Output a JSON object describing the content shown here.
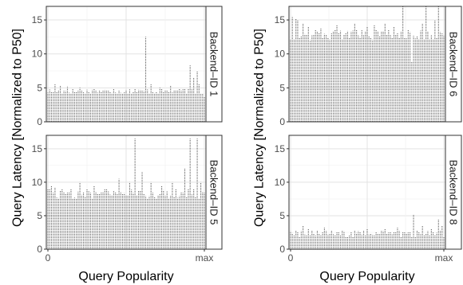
{
  "chart_data": [
    {
      "type": "bar",
      "facet": "Backend-ID 1",
      "ylabel": "Query Latency [Normalized to P50]",
      "xlabel": "Query Popularity",
      "yticks": [
        0,
        5,
        10,
        15
      ],
      "xticks": [
        "0",
        "max"
      ],
      "ylim": [
        0,
        17
      ],
      "grid": true,
      "series": [
        {
          "base": 4.5,
          "noise": 0.4,
          "spikes": [
            [
              0.05,
              5.5
            ],
            [
              0.08,
              5.3
            ],
            [
              0.13,
              5.2
            ],
            [
              0.2,
              5.0
            ],
            [
              0.3,
              4.9
            ],
            [
              0.42,
              4.8
            ],
            [
              0.5,
              4.7
            ],
            [
              0.56,
              4.8
            ],
            [
              0.62,
              12.5
            ],
            [
              0.66,
              5.5
            ],
            [
              0.72,
              5.0
            ],
            [
              0.78,
              5.4
            ],
            [
              0.82,
              4.6
            ],
            [
              0.87,
              4.8
            ],
            [
              0.91,
              8.3
            ],
            [
              0.93,
              6.5
            ],
            [
              0.95,
              7.5
            ],
            [
              0.97,
              5.5
            ],
            [
              0.99,
              3.0
            ]
          ]
        }
      ]
    },
    {
      "type": "bar",
      "facet": "Backend-ID 6",
      "ylabel": "Query Latency [Normalized to P50]",
      "xlabel": "Query Popularity",
      "yticks": [
        0,
        5,
        10,
        15
      ],
      "xticks": [
        "0",
        "max"
      ],
      "ylim": [
        0,
        17
      ],
      "grid": true,
      "series": [
        {
          "base": 12.8,
          "noise": 0.8,
          "spikes": [
            [
              0.01,
              15.5
            ],
            [
              0.03,
              15.2
            ],
            [
              0.05,
              15.0
            ],
            [
              0.08,
              14.5
            ],
            [
              0.12,
              14.0
            ],
            [
              0.2,
              13.8
            ],
            [
              0.3,
              14.2
            ],
            [
              0.42,
              14.5
            ],
            [
              0.5,
              14.0
            ],
            [
              0.55,
              14.2
            ],
            [
              0.62,
              14.5
            ],
            [
              0.68,
              14.0
            ],
            [
              0.73,
              17.0
            ],
            [
              0.75,
              11.5
            ],
            [
              0.78,
              10.5
            ],
            [
              0.8,
              5.0
            ],
            [
              0.82,
              12.5
            ],
            [
              0.86,
              14.5
            ],
            [
              0.88,
              17.0
            ],
            [
              0.94,
              15.0
            ],
            [
              0.97,
              17.0
            ],
            [
              0.99,
              13.0
            ]
          ]
        }
      ]
    },
    {
      "type": "bar",
      "facet": "Backend-ID 5",
      "ylabel": "Query Latency [Normalized to P50]",
      "xlabel": "Query Popularity",
      "yticks": [
        0,
        5,
        10,
        15
      ],
      "xticks": [
        "0",
        "max"
      ],
      "ylim": [
        0,
        17
      ],
      "grid": true,
      "series": [
        {
          "base": 8.2,
          "noise": 0.8,
          "spikes": [
            [
              0.02,
              9.5
            ],
            [
              0.05,
              9.2
            ],
            [
              0.1,
              8.5
            ],
            [
              0.15,
              9.0
            ],
            [
              0.2,
              10.0
            ],
            [
              0.25,
              9.0
            ],
            [
              0.3,
              9.5
            ],
            [
              0.37,
              9.0
            ],
            [
              0.45,
              10.5
            ],
            [
              0.52,
              10.0
            ],
            [
              0.56,
              16.5
            ],
            [
              0.6,
              11.5
            ],
            [
              0.66,
              10.0
            ],
            [
              0.73,
              9.5
            ],
            [
              0.8,
              10.0
            ],
            [
              0.87,
              12.0
            ],
            [
              0.91,
              16.5
            ],
            [
              0.95,
              16.5
            ],
            [
              0.98,
              10.0
            ]
          ]
        }
      ]
    },
    {
      "type": "bar",
      "facet": "Backend-ID 8",
      "ylabel": "Query Latency [Normalized to P50]",
      "xlabel": "Query Popularity",
      "yticks": [
        0,
        5,
        10,
        15
      ],
      "xticks": [
        "0",
        "max"
      ],
      "ylim": [
        0,
        17
      ],
      "grid": true,
      "series": [
        {
          "base": 2.3,
          "noise": 0.5,
          "spikes": [
            [
              0.03,
              2.8
            ],
            [
              0.08,
              3.5
            ],
            [
              0.12,
              3.0
            ],
            [
              0.18,
              2.8
            ],
            [
              0.22,
              3.2
            ],
            [
              0.3,
              2.5
            ],
            [
              0.35,
              1.5
            ],
            [
              0.42,
              2.8
            ],
            [
              0.5,
              3.0
            ],
            [
              0.56,
              2.5
            ],
            [
              0.62,
              3.0
            ],
            [
              0.7,
              3.2
            ],
            [
              0.8,
              5.2
            ],
            [
              0.86,
              3.5
            ],
            [
              0.92,
              3.0
            ],
            [
              0.96,
              4.5
            ],
            [
              0.99,
              3.5
            ]
          ]
        }
      ]
    }
  ]
}
